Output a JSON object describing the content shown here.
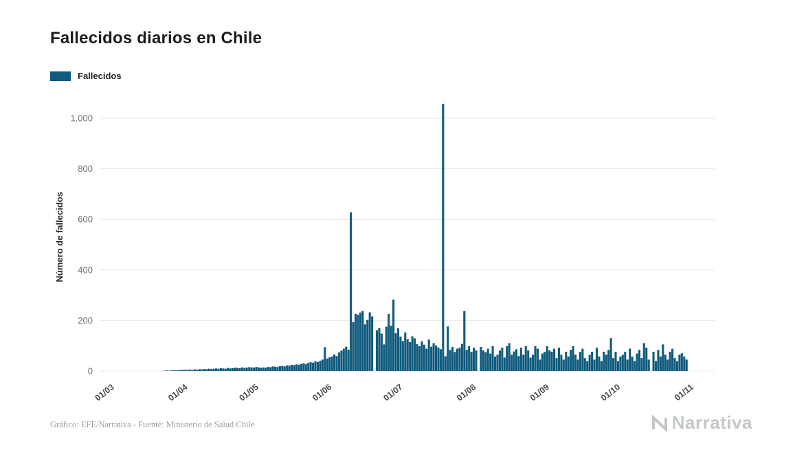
{
  "page": {
    "title": "Fallecidos diarios en Chile",
    "footer": "Gráfico: EFE/Narrativa - Fuente: Ministerio de Salud Chile",
    "brand": "Narrativa"
  },
  "legend": {
    "label": "Fallecidos"
  },
  "chart_data": {
    "type": "bar",
    "title": "Fallecidos diarios en Chile",
    "series_name": "Fallecidos",
    "ylabel": "Número de fallecidos",
    "bar_color": "#0f5a7d",
    "grid_color": "#e8e8e8",
    "x_unit": "day",
    "x_start": "01/03",
    "x_end": "01/11",
    "x_tick_labels": [
      "01/03",
      "01/04",
      "01/05",
      "01/06",
      "01/07",
      "01/08",
      "01/09",
      "01/10",
      "01/11"
    ],
    "x_tick_day_index": [
      0,
      31,
      61,
      92,
      122,
      153,
      184,
      214,
      245
    ],
    "y_ticks": [
      0,
      200,
      400,
      600,
      800,
      1000
    ],
    "y_tick_labels": [
      "0",
      "200",
      "400",
      "600",
      "800",
      "1.000"
    ],
    "ylim": [
      0,
      1100
    ],
    "values": [
      0,
      0,
      0,
      0,
      0,
      0,
      0,
      0,
      0,
      0,
      0,
      0,
      0,
      0,
      0,
      0,
      0,
      0,
      0,
      0,
      1,
      2,
      1,
      2,
      3,
      2,
      3,
      4,
      4,
      5,
      4,
      5,
      4,
      6,
      5,
      7,
      6,
      8,
      7,
      9,
      8,
      9,
      10,
      9,
      11,
      10,
      9,
      12,
      10,
      11,
      13,
      12,
      11,
      14,
      12,
      13,
      15,
      14,
      13,
      16,
      14,
      12,
      14,
      13,
      16,
      15,
      18,
      17,
      16,
      19,
      20,
      18,
      22,
      21,
      24,
      23,
      26,
      25,
      28,
      30,
      27,
      32,
      35,
      33,
      38,
      36,
      40,
      45,
      94,
      49,
      54,
      57,
      65,
      59,
      73,
      80,
      88,
      96,
      84,
      627,
      193,
      226,
      222,
      231,
      237,
      184,
      202,
      232,
      216,
      0,
      161,
      170,
      148,
      105,
      175,
      226,
      179,
      282,
      149,
      169,
      136,
      118,
      152,
      125,
      114,
      137,
      129,
      106,
      98,
      117,
      104,
      88,
      124,
      96,
      110,
      101,
      93,
      86,
      1057,
      58,
      176,
      83,
      95,
      75,
      88,
      92,
      107,
      237,
      84,
      98,
      75,
      92,
      81,
      0,
      95,
      81,
      74,
      88,
      69,
      98,
      57,
      64,
      81,
      92,
      53,
      98,
      110,
      64,
      77,
      86,
      59,
      92,
      64,
      98,
      81,
      53,
      64,
      98,
      88,
      45,
      69,
      75,
      98,
      81,
      76,
      88,
      51,
      92,
      64,
      45,
      76,
      57,
      83,
      98,
      64,
      45,
      76,
      88,
      51,
      39,
      64,
      76,
      45,
      92,
      57,
      39,
      76,
      64,
      83,
      130,
      51,
      76,
      39,
      57,
      64,
      76,
      45,
      88,
      57,
      39,
      69,
      83,
      51,
      110,
      92,
      45,
      0,
      76,
      39,
      83,
      57,
      105,
      64,
      45,
      76,
      88,
      51,
      39,
      64,
      70,
      57,
      45,
      0,
      0,
      0,
      0
    ]
  }
}
